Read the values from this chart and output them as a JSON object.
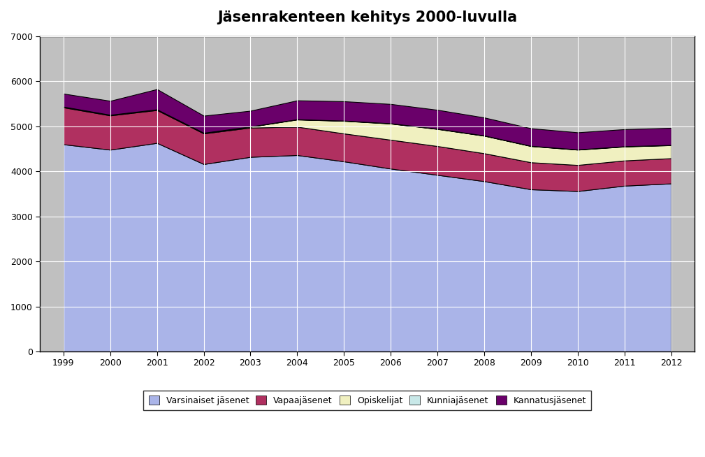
{
  "title": "Jäsenrakenteen kehitys 2000-luvulla",
  "years": [
    1999,
    2000,
    2001,
    2002,
    2003,
    2004,
    2005,
    2006,
    2007,
    2008,
    2009,
    2010,
    2011,
    2012
  ],
  "series": {
    "Varsinaiset jäsenet": [
      4600,
      4480,
      4630,
      4160,
      4320,
      4360,
      4220,
      4060,
      3920,
      3780,
      3600,
      3560,
      3680,
      3730
    ],
    "Vapaajäsenet": [
      820,
      760,
      730,
      680,
      650,
      630,
      620,
      640,
      640,
      620,
      600,
      580,
      560,
      560
    ],
    "Opiskelijat": [
      10,
      10,
      10,
      10,
      20,
      160,
      280,
      360,
      380,
      390,
      360,
      340,
      310,
      290
    ],
    "Kunniajäsenet": [
      5,
      5,
      5,
      5,
      5,
      5,
      5,
      5,
      5,
      5,
      5,
      5,
      5,
      5
    ],
    "Kannatusjäsenet": [
      290,
      310,
      450,
      380,
      350,
      420,
      430,
      430,
      420,
      400,
      390,
      380,
      380,
      380
    ]
  },
  "colors": {
    "Varsinaiset jäsenet": "#aab4e8",
    "Vapaajäsenet": "#b03060",
    "Opiskelijat": "#f0f0c0",
    "Kunniajäsenet": "#c8e8e8",
    "Kannatusjäsenet": "#6a006a"
  },
  "ylim": [
    0,
    7000
  ],
  "yticks": [
    0,
    1000,
    2000,
    3000,
    4000,
    5000,
    6000,
    7000
  ],
  "background_plot": "#c0c0c0",
  "background_fig": "#ffffff",
  "title_fontsize": 15,
  "grid_color": "#ffffff",
  "edge_color": "#000000"
}
